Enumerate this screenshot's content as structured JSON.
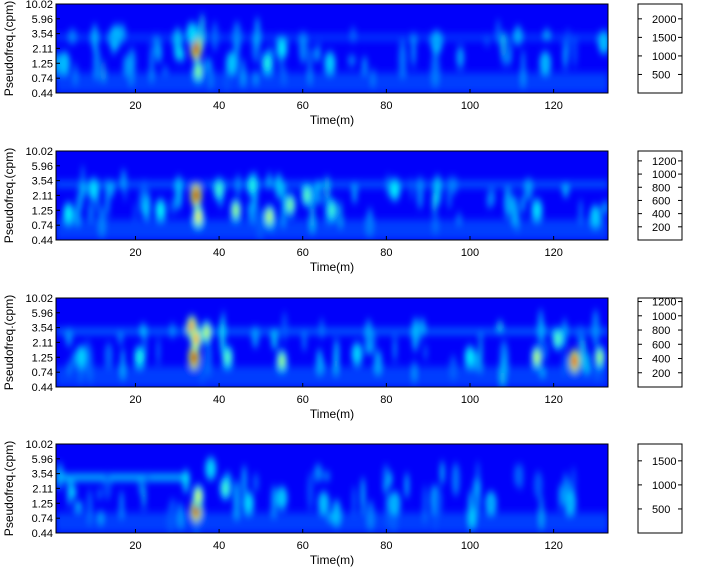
{
  "figure": {
    "ylabel": "Pseudofreq.(cpm)",
    "xlabel": "Time(m)"
  },
  "chart_data": [
    {
      "type": "heatmap",
      "panel": 1,
      "xlabel": "Time(m)",
      "ylabel": "Pseudofreq.(cpm)",
      "x_range": [
        1,
        133
      ],
      "x_ticks": [
        20,
        40,
        60,
        80,
        100,
        120
      ],
      "y_ticks": [
        "10.02",
        "5.96",
        "3.54",
        "2.11",
        "1.25",
        "0.74",
        "0.44"
      ],
      "y_scale": "log",
      "colormap": "jet",
      "colorbar": {
        "ticks": [
          500,
          1000,
          1500,
          2000
        ],
        "range": [
          0,
          2400
        ]
      },
      "peak": {
        "x": 34.5,
        "y": 2.11,
        "value": 2300
      },
      "hot_spots": [
        {
          "x": 34.5,
          "y": 2.11,
          "value": 2300
        },
        {
          "x": 35.0,
          "y": 0.95,
          "value": 1100
        },
        {
          "x": 51.5,
          "y": 1.25,
          "value": 800
        },
        {
          "x": 33.5,
          "y": 3.54,
          "value": 600
        },
        {
          "x": 55.0,
          "y": 2.11,
          "value": 650
        },
        {
          "x": 66.5,
          "y": 1.25,
          "value": 550
        },
        {
          "x": 43.0,
          "y": 1.25,
          "value": 500
        },
        {
          "x": 3.0,
          "y": 1.25,
          "value": 450
        },
        {
          "x": 132.0,
          "y": 2.6,
          "value": 450
        },
        {
          "x": 118.0,
          "y": 1.25,
          "value": 400
        },
        {
          "x": 15.0,
          "y": 3.0,
          "value": 350
        },
        {
          "x": 92.0,
          "y": 2.6,
          "value": 300
        }
      ],
      "background_band": {
        "y": 3.1,
        "value": 300
      }
    },
    {
      "type": "heatmap",
      "panel": 2,
      "xlabel": "Time(m)",
      "ylabel": "Pseudofreq.(cpm)",
      "x_range": [
        1,
        133
      ],
      "x_ticks": [
        20,
        40,
        60,
        80,
        100,
        120
      ],
      "y_ticks": [
        "10.02",
        "5.96",
        "3.54",
        "2.11",
        "1.25",
        "0.74",
        "0.44"
      ],
      "y_scale": "log",
      "colormap": "jet",
      "colorbar": {
        "ticks": [
          200,
          400,
          600,
          800,
          1000,
          1200
        ],
        "range": [
          0,
          1350
        ]
      },
      "peak": {
        "x": 34.5,
        "y": 2.11,
        "value": 1300
      },
      "hot_spots": [
        {
          "x": 34.5,
          "y": 2.11,
          "value": 1300
        },
        {
          "x": 35.0,
          "y": 1.0,
          "value": 800
        },
        {
          "x": 44.0,
          "y": 1.25,
          "value": 650
        },
        {
          "x": 52.0,
          "y": 1.0,
          "value": 700
        },
        {
          "x": 57.0,
          "y": 1.5,
          "value": 600
        },
        {
          "x": 40.0,
          "y": 2.6,
          "value": 500
        },
        {
          "x": 61.0,
          "y": 2.11,
          "value": 550
        },
        {
          "x": 67.0,
          "y": 1.25,
          "value": 500
        },
        {
          "x": 48.0,
          "y": 3.0,
          "value": 450
        },
        {
          "x": 26.0,
          "y": 1.25,
          "value": 400
        },
        {
          "x": 4.0,
          "y": 1.1,
          "value": 400
        },
        {
          "x": 10.0,
          "y": 2.6,
          "value": 350
        },
        {
          "x": 82.0,
          "y": 2.6,
          "value": 400
        },
        {
          "x": 116.0,
          "y": 1.25,
          "value": 350
        },
        {
          "x": 130.0,
          "y": 1.0,
          "value": 300
        }
      ],
      "background_band": {
        "y": 3.1,
        "value": 250
      }
    },
    {
      "type": "heatmap",
      "panel": 3,
      "xlabel": "Time(m)",
      "ylabel": "Pseudofreq.(cpm)",
      "x_range": [
        1,
        133
      ],
      "x_ticks": [
        20,
        40,
        60,
        80,
        100,
        120
      ],
      "y_ticks": [
        "10.02",
        "5.96",
        "3.54",
        "2.11",
        "1.25",
        "0.74",
        "0.44"
      ],
      "y_scale": "log",
      "colormap": "jet",
      "colorbar": {
        "ticks": [
          200,
          400,
          600,
          800,
          1000,
          1200
        ],
        "range": [
          0,
          1250
        ]
      },
      "peak": {
        "x": 34.0,
        "y": 1.25,
        "value": 1200
      },
      "hot_spots": [
        {
          "x": 34.0,
          "y": 1.25,
          "value": 1200
        },
        {
          "x": 33.5,
          "y": 3.54,
          "value": 1000
        },
        {
          "x": 34.5,
          "y": 2.4,
          "value": 900
        },
        {
          "x": 125.0,
          "y": 1.1,
          "value": 1100
        },
        {
          "x": 37.0,
          "y": 3.0,
          "value": 650
        },
        {
          "x": 55.0,
          "y": 1.1,
          "value": 600
        },
        {
          "x": 42.0,
          "y": 1.25,
          "value": 500
        },
        {
          "x": 116.0,
          "y": 1.25,
          "value": 650
        },
        {
          "x": 131.0,
          "y": 1.25,
          "value": 600
        },
        {
          "x": 121.0,
          "y": 2.4,
          "value": 500
        },
        {
          "x": 21.0,
          "y": 1.25,
          "value": 400
        },
        {
          "x": 100.0,
          "y": 1.25,
          "value": 350
        },
        {
          "x": 7.0,
          "y": 1.25,
          "value": 300
        },
        {
          "x": 73.0,
          "y": 1.4,
          "value": 300
        }
      ],
      "background_band": {
        "y": 3.1,
        "value": 250
      }
    },
    {
      "type": "heatmap",
      "panel": 4,
      "xlabel": "Time(m)",
      "ylabel": "Pseudofreq.(cpm)",
      "x_range": [
        1,
        133
      ],
      "x_ticks": [
        20,
        40,
        60,
        80,
        100,
        120
      ],
      "y_ticks": [
        "10.02",
        "5.96",
        "3.54",
        "2.11",
        "1.25",
        "0.74",
        "0.44"
      ],
      "y_scale": "log",
      "colormap": "jet",
      "colorbar": {
        "ticks": [
          500,
          1000,
          1500
        ],
        "range": [
          0,
          1850
        ]
      },
      "peak": {
        "x": 34.5,
        "y": 1.0,
        "value": 1800
      },
      "hot_spots": [
        {
          "x": 34.5,
          "y": 1.0,
          "value": 1800
        },
        {
          "x": 35.0,
          "y": 1.6,
          "value": 1000
        },
        {
          "x": 41.5,
          "y": 2.11,
          "value": 700
        },
        {
          "x": 38.0,
          "y": 4.2,
          "value": 450
        },
        {
          "x": 47.0,
          "y": 1.25,
          "value": 450
        },
        {
          "x": 55.0,
          "y": 1.5,
          "value": 400
        },
        {
          "x": 65.0,
          "y": 1.25,
          "value": 350
        },
        {
          "x": 82.0,
          "y": 1.25,
          "value": 300
        },
        {
          "x": 124.0,
          "y": 1.25,
          "value": 300
        },
        {
          "x": 105.0,
          "y": 1.25,
          "value": 250
        }
      ],
      "background_band": {
        "y": 3.1,
        "value": 750,
        "x_to": 33
      }
    }
  ]
}
